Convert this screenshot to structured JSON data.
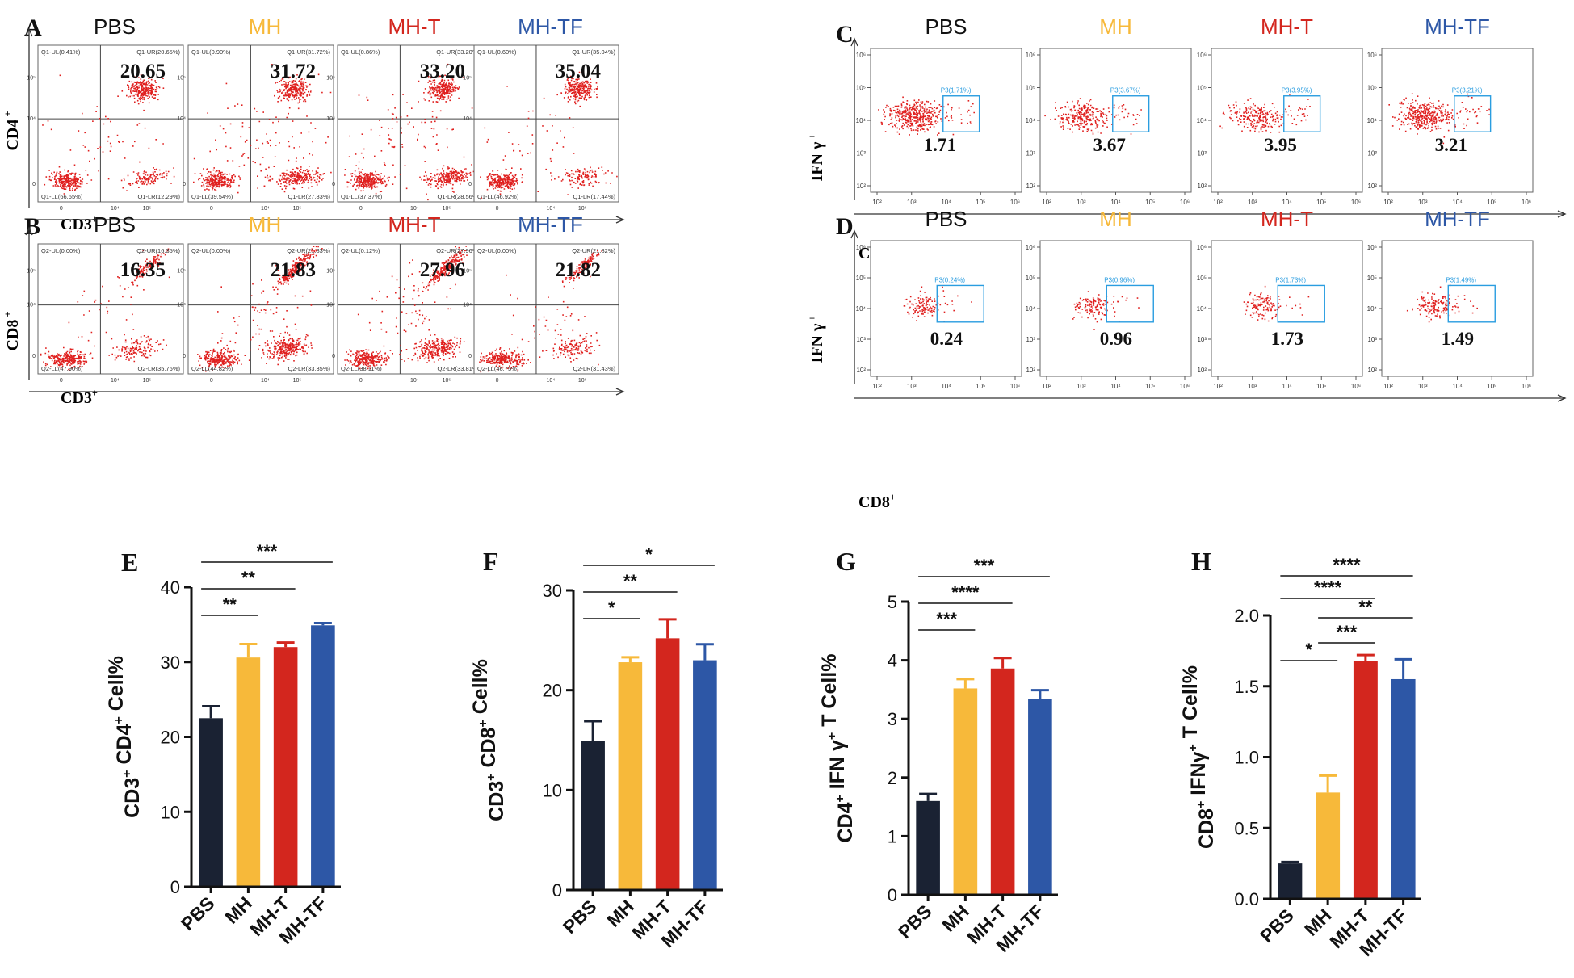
{
  "colors": {
    "PBS": "#1a2233",
    "MH": "#f7b93a",
    "MH-T": "#d3261e",
    "MH-TF": "#2d57a6",
    "dots": "#e0201f",
    "gate": "#2a9de0",
    "header_pbs": "#111111"
  },
  "groups": [
    "PBS",
    "MH",
    "MH-T",
    "MH-TF"
  ],
  "chart_data": [
    {
      "panel": "A",
      "type": "scatter",
      "subtype": "flow-quadrant",
      "xlabel": "CD3",
      "ylabel": "CD4",
      "quad_prefix": "Q1",
      "plots": [
        {
          "group": "PBS",
          "UL": "Q1-UL(0.41%)",
          "UR": "Q1-UR(20.65%)",
          "LL": "Q1-LL(66.65%)",
          "LR": "Q1-LR(12.29%)",
          "value": "20.65"
        },
        {
          "group": "MH",
          "UL": "Q1-UL(0.90%)",
          "UR": "Q1-UR(31.72%)",
          "LL": "Q1-LL(39.54%)",
          "LR": "Q1-LR(27.83%)",
          "value": "31.72"
        },
        {
          "group": "MH-T",
          "UL": "Q1-UL(0.86%)",
          "UR": "Q1-UR(33.20%)",
          "LL": "Q1-LL(37.37%)",
          "LR": "Q1-LR(28.56%)",
          "value": "33.20"
        },
        {
          "group": "MH-TF",
          "UL": "Q1-UL(0.60%)",
          "UR": "Q1-UR(35.04%)",
          "LL": "Q1-LL(46.92%)",
          "LR": "Q1-LR(17.44%)",
          "value": "35.04"
        }
      ]
    },
    {
      "panel": "B",
      "type": "scatter",
      "subtype": "flow-quadrant",
      "xlabel": "CD3",
      "ylabel": "CD8",
      "plots": [
        {
          "group": "PBS",
          "UL": "Q2-UL(0.00%)",
          "UR": "Q2-UR(16.35%)",
          "LL": "Q2-LL(47.90%)",
          "LR": "Q2-LR(35.76%)",
          "value": "16.35"
        },
        {
          "group": "MH",
          "UL": "Q2-UL(0.00%)",
          "UR": "Q2-UR(21.83%)",
          "LL": "Q2-LL(44.82%)",
          "LR": "Q2-LR(33.35%)",
          "value": "21.83"
        },
        {
          "group": "MH-T",
          "UL": "Q2-UL(0.12%)",
          "UR": "Q2-UR(27.96%)",
          "LL": "Q2-LL(38.11%)",
          "LR": "Q2-LR(33.81%)",
          "value": "27.96"
        },
        {
          "group": "MH-TF",
          "UL": "Q2-UL(0.00%)",
          "UR": "Q2-UR(21.82%)",
          "LL": "Q2-LL(46.75%)",
          "LR": "Q2-LR(31.43%)",
          "value": "21.82"
        }
      ]
    },
    {
      "panel": "C",
      "type": "scatter",
      "subtype": "flow-gate",
      "xlabel": "CD4",
      "ylabel": "IFN γ",
      "plots": [
        {
          "group": "PBS",
          "gate": "P3(1.71%)",
          "value": "1.71"
        },
        {
          "group": "MH",
          "gate": "P3(3.67%)",
          "value": "3.67"
        },
        {
          "group": "MH-T",
          "gate": "P3(3.95%)",
          "value": "3.95"
        },
        {
          "group": "MH-TF",
          "gate": "P3(3.21%)",
          "value": "3.21"
        }
      ]
    },
    {
      "panel": "D",
      "type": "scatter",
      "subtype": "flow-gate",
      "xlabel": "CD8",
      "ylabel": "IFN γ",
      "plots": [
        {
          "group": "PBS",
          "gate": "P3(0.24%)",
          "value": "0.24"
        },
        {
          "group": "MH",
          "gate": "P3(0.96%)",
          "value": "0.96"
        },
        {
          "group": "MH-T",
          "gate": "P3(1.73%)",
          "value": "1.73"
        },
        {
          "group": "MH-TF",
          "gate": "P3(1.49%)",
          "value": "1.49"
        }
      ]
    },
    {
      "panel": "E",
      "type": "bar",
      "categories": [
        "PBS",
        "MH",
        "MH-T",
        "MH-TF"
      ],
      "values": [
        22.5,
        30.6,
        32.0,
        34.9
      ],
      "errors": [
        1.6,
        1.8,
        0.6,
        0.3
      ],
      "ylim": [
        0,
        40
      ],
      "yticks": [
        0,
        10,
        20,
        30,
        40
      ],
      "ylabel": "CD3⁺ CD4⁺ Cell%",
      "significance": [
        {
          "from": 0,
          "to": 3,
          "label": "***"
        },
        {
          "from": 0,
          "to": 2,
          "label": "**"
        },
        {
          "from": 0,
          "to": 1,
          "label": "**"
        }
      ]
    },
    {
      "panel": "F",
      "type": "bar",
      "categories": [
        "PBS",
        "MH",
        "MH-T",
        "MH-TF"
      ],
      "values": [
        14.9,
        22.8,
        25.2,
        23.0
      ],
      "errors": [
        2.0,
        0.5,
        1.9,
        1.6
      ],
      "ylim": [
        0,
        30
      ],
      "yticks": [
        0,
        10,
        20,
        30
      ],
      "ylabel": "CD3⁺ CD8⁺ Cell%",
      "significance": [
        {
          "from": 0,
          "to": 3,
          "label": "*"
        },
        {
          "from": 0,
          "to": 2,
          "label": "**"
        },
        {
          "from": 0,
          "to": 1,
          "label": "*"
        }
      ]
    },
    {
      "panel": "G",
      "type": "bar",
      "categories": [
        "PBS",
        "MH",
        "MH-T",
        "MH-TF"
      ],
      "values": [
        1.6,
        3.52,
        3.86,
        3.34
      ],
      "errors": [
        0.12,
        0.16,
        0.18,
        0.15
      ],
      "ylim": [
        0,
        5
      ],
      "yticks": [
        0,
        1,
        2,
        3,
        4,
        5
      ],
      "ylabel": "CD4⁺ IFN γ⁺ T Cell%",
      "significance": [
        {
          "from": 0,
          "to": 3,
          "label": "***"
        },
        {
          "from": 0,
          "to": 2,
          "label": "****"
        },
        {
          "from": 0,
          "to": 1,
          "label": "***"
        }
      ]
    },
    {
      "panel": "H",
      "type": "bar",
      "categories": [
        "PBS",
        "MH",
        "MH-T",
        "MH-TF"
      ],
      "values": [
        0.25,
        0.75,
        1.68,
        1.55
      ],
      "errors": [
        0.01,
        0.12,
        0.04,
        0.14
      ],
      "ylim": [
        0,
        2.0
      ],
      "yticks": [
        "0.0",
        "0.5",
        "1.0",
        "1.5",
        "2.0"
      ],
      "ylabel": "CD8⁺ IFNγ⁺ T Cell%",
      "significance": [
        {
          "from": 0,
          "to": 3,
          "label": "****"
        },
        {
          "from": 0,
          "to": 2,
          "label": "****"
        },
        {
          "from": 1,
          "to": 3,
          "label": "**"
        },
        {
          "from": 1,
          "to": 2,
          "label": "***"
        },
        {
          "from": 0,
          "to": 1,
          "label": "*"
        }
      ]
    }
  ],
  "tick_labels": {
    "x_flow_ab": [
      "0",
      "10⁴",
      "10⁵"
    ],
    "y_flow_ab": [
      "0",
      "10⁴",
      "10⁵"
    ],
    "x_flow_cd": [
      "10²",
      "10³",
      "10⁴",
      "10⁵",
      "10⁶"
    ],
    "y_flow_cd": [
      "10²",
      "10³",
      "10⁴",
      "10⁵",
      "10⁶"
    ]
  }
}
